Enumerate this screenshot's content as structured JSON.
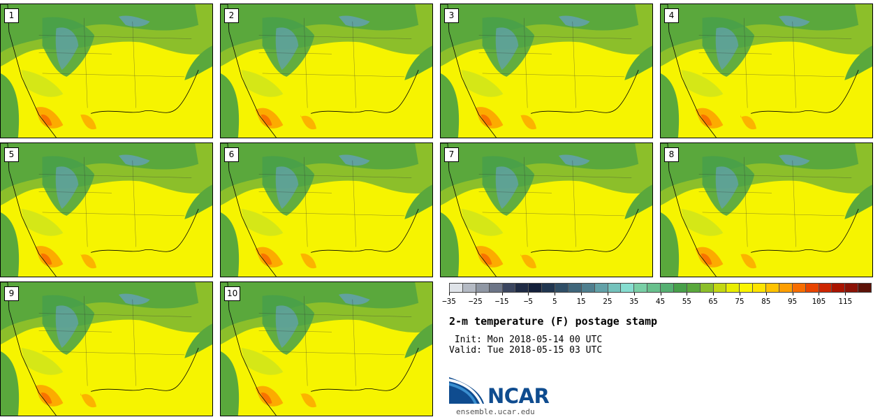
{
  "panels": [
    {
      "label": "1"
    },
    {
      "label": "2"
    },
    {
      "label": "3"
    },
    {
      "label": "4"
    },
    {
      "label": "5"
    },
    {
      "label": "6"
    },
    {
      "label": "7"
    },
    {
      "label": "8"
    },
    {
      "label": "9"
    },
    {
      "label": "10"
    }
  ],
  "colorbar": {
    "colors": [
      "#dfe3e8",
      "#b4bac4",
      "#8f97a4",
      "#6c7587",
      "#3b4660",
      "#1f2b45",
      "#13203a",
      "#203650",
      "#2f4e66",
      "#3f667a",
      "#4f7f8f",
      "#62a1a8",
      "#74c2bc",
      "#86ddd0",
      "#79cfa6",
      "#68c08c",
      "#56b072",
      "#48a04a",
      "#5aa83c",
      "#8cbf2a",
      "#c3d812",
      "#e9ee00",
      "#fbf500",
      "#fde400",
      "#fec300",
      "#fd9e00",
      "#f76d00",
      "#e84400",
      "#cc2600",
      "#a91400",
      "#8b1206",
      "#5c1208"
    ],
    "tick_labels": [
      "−35",
      "−25",
      "−15",
      "−5",
      "5",
      "15",
      "25",
      "35",
      "45",
      "55",
      "65",
      "75",
      "85",
      "95",
      "105",
      "115"
    ]
  },
  "title": "2-m temperature (F) postage stamp",
  "init": " Init: Mon 2018-05-14 00 UTC",
  "valid": "Valid: Tue 2018-05-15 03 UTC",
  "logo": {
    "text": "NCAR",
    "site": "ensemble.ucar.edu",
    "colors": {
      "blue": "#0f4c8f",
      "light_blue": "#3a8fd0"
    }
  },
  "map_colors": {
    "yellow": "#f6f400",
    "yellow_green": "#d2e51a",
    "green": "#8cbf2a",
    "mid_green": "#5aa83c",
    "dark_green": "#48a04a",
    "teal": "#62a1a8",
    "orange": "#fd9e00",
    "red_orange": "#f76d00"
  }
}
